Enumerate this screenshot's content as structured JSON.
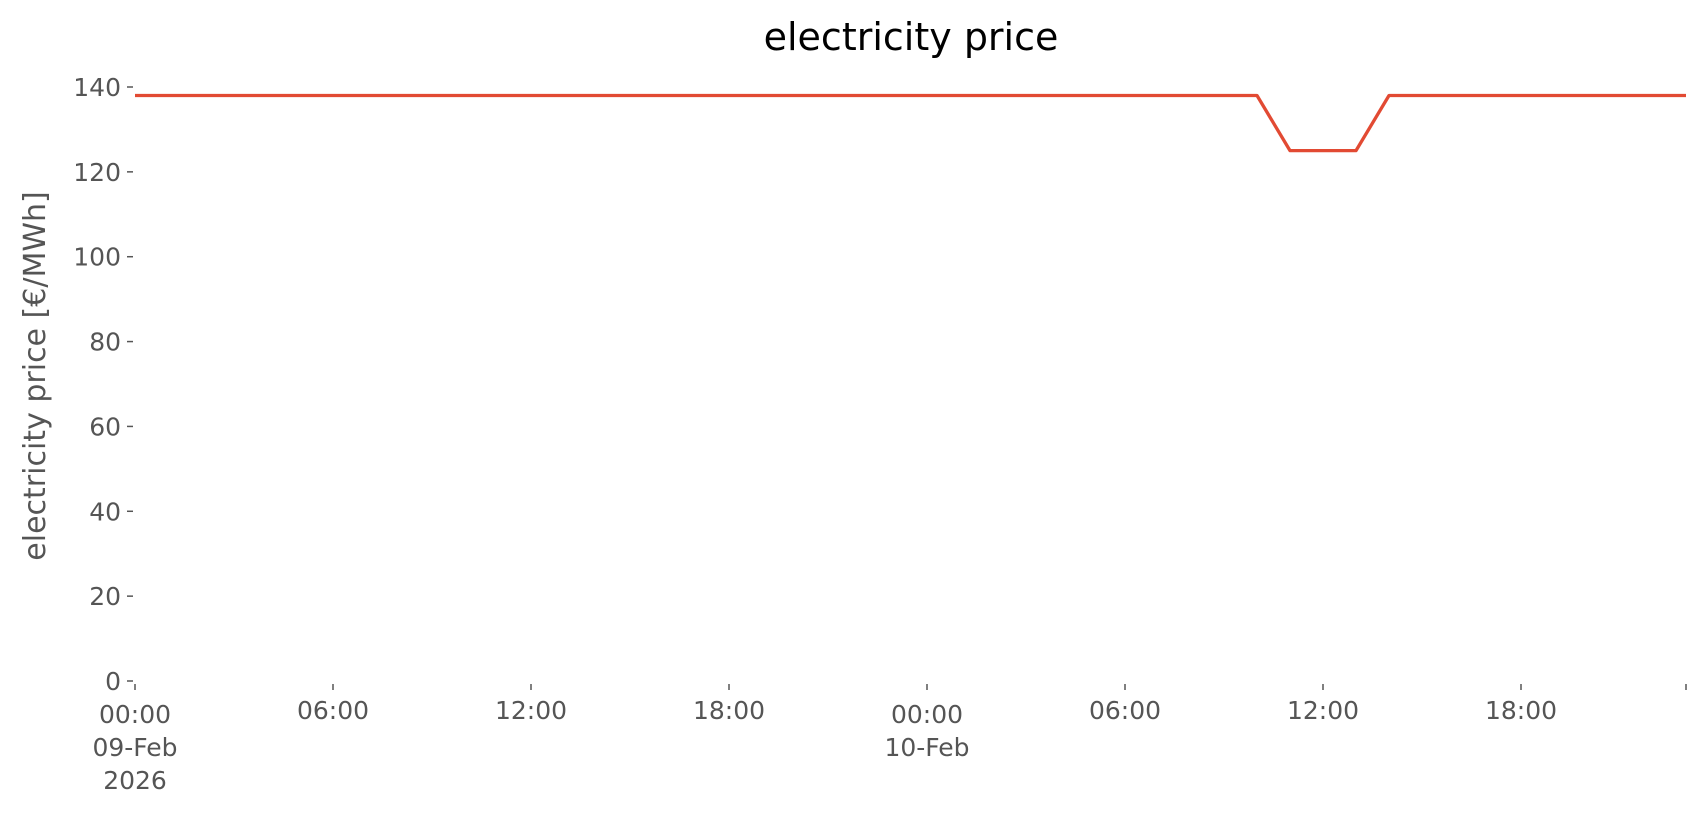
{
  "chart_data": {
    "type": "line",
    "title": "electricity price",
    "ylabel": "electricity price [€/MWh]",
    "x": [
      "2026-02-09 00:00",
      "2026-02-09 01:00",
      "2026-02-09 02:00",
      "2026-02-09 03:00",
      "2026-02-09 04:00",
      "2026-02-09 05:00",
      "2026-02-09 06:00",
      "2026-02-09 07:00",
      "2026-02-09 08:00",
      "2026-02-09 09:00",
      "2026-02-09 10:00",
      "2026-02-09 11:00",
      "2026-02-09 12:00",
      "2026-02-09 13:00",
      "2026-02-09 14:00",
      "2026-02-09 15:00",
      "2026-02-09 16:00",
      "2026-02-09 17:00",
      "2026-02-09 18:00",
      "2026-02-09 19:00",
      "2026-02-09 20:00",
      "2026-02-09 21:00",
      "2026-02-09 22:00",
      "2026-02-09 23:00",
      "2026-02-10 00:00",
      "2026-02-10 01:00",
      "2026-02-10 02:00",
      "2026-02-10 03:00",
      "2026-02-10 04:00",
      "2026-02-10 05:00",
      "2026-02-10 06:00",
      "2026-02-10 07:00",
      "2026-02-10 08:00",
      "2026-02-10 09:00",
      "2026-02-10 10:00",
      "2026-02-10 11:00",
      "2026-02-10 12:00",
      "2026-02-10 13:00",
      "2026-02-10 14:00",
      "2026-02-10 15:00",
      "2026-02-10 16:00",
      "2026-02-10 17:00",
      "2026-02-10 18:00",
      "2026-02-10 19:00",
      "2026-02-10 20:00",
      "2026-02-10 21:00",
      "2026-02-10 22:00",
      "2026-02-10 23:00"
    ],
    "series": [
      {
        "name": "electricity price",
        "color": "#e24a33",
        "values": [
          138,
          138,
          138,
          138,
          138,
          138,
          138,
          138,
          138,
          138,
          138,
          138,
          138,
          138,
          138,
          138,
          138,
          138,
          138,
          138,
          138,
          138,
          138,
          138,
          138,
          138,
          138,
          138,
          138,
          138,
          138,
          138,
          138,
          138,
          138,
          125,
          125,
          125,
          138,
          138,
          138,
          138,
          138,
          138,
          138,
          138,
          138,
          138
        ]
      }
    ],
    "xlim": [
      "2026-02-09 00:00",
      "2026-02-10 23:00"
    ],
    "xticks": [
      {
        "value": "2026-02-09 00:00",
        "label": [
          "00:00",
          "09-Feb",
          "2026"
        ]
      },
      {
        "value": "2026-02-09 06:00",
        "label": [
          "06:00"
        ]
      },
      {
        "value": "2026-02-09 12:00",
        "label": [
          "12:00"
        ]
      },
      {
        "value": "2026-02-09 18:00",
        "label": [
          "18:00"
        ]
      },
      {
        "value": "2026-02-10 00:00",
        "label": [
          "00:00",
          "10-Feb"
        ]
      },
      {
        "value": "2026-02-10 06:00",
        "label": [
          "06:00"
        ]
      },
      {
        "value": "2026-02-10 12:00",
        "label": [
          "12:00"
        ]
      },
      {
        "value": "2026-02-10 18:00",
        "label": [
          "18:00"
        ]
      }
    ],
    "ylim": [
      0,
      140
    ],
    "yticks": [
      0,
      20,
      40,
      60,
      80,
      100,
      120,
      140
    ],
    "grid": false
  }
}
